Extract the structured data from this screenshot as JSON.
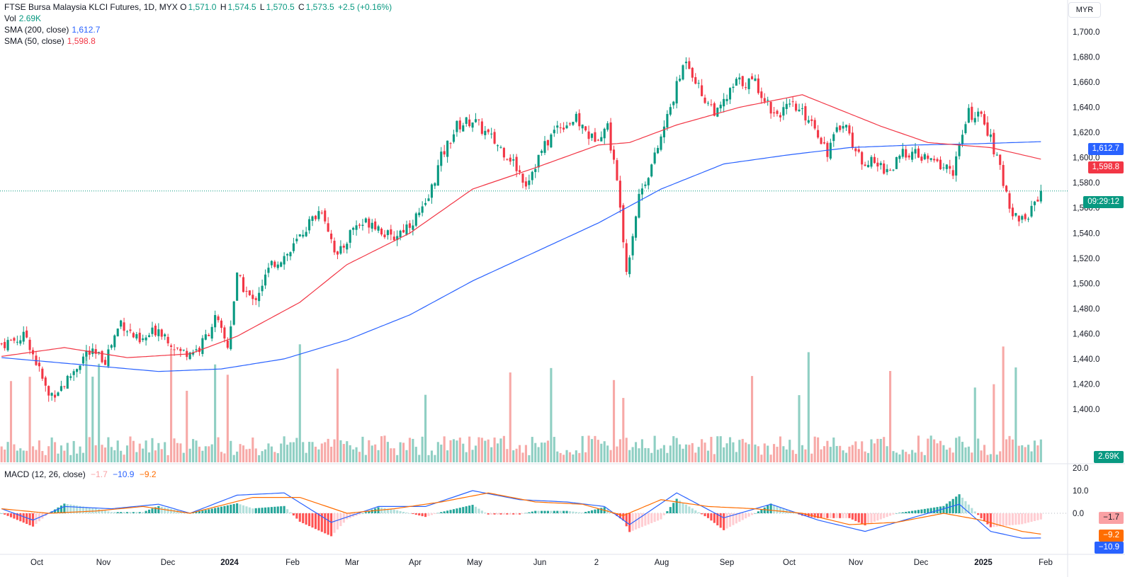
{
  "header": {
    "symbol": "FTSE Bursa Malaysia KLCI Futures, 1D, MYX",
    "o_label": "O",
    "o": "1,571.0",
    "h_label": "H",
    "h": "1,574.5",
    "l_label": "L",
    "l": "1,570.5",
    "c_label": "C",
    "c": "1,573.5",
    "change": "+2.5 (+0.16%)"
  },
  "legends": {
    "vol_label": "Vol",
    "vol_value": "2.69K",
    "sma200_label": "SMA (200, close)",
    "sma200_value": "1,612.7",
    "sma50_label": "SMA (50, close)",
    "sma50_value": "1,598.8",
    "macd_label": "MACD (12, 26, close)",
    "macd_hist": "−1.7",
    "macd_line": "−10.9",
    "macd_signal": "−9.2"
  },
  "axis": {
    "currency": "MYR"
  },
  "tags": {
    "sma200": "1,612.7",
    "sma50": "1,598.8",
    "countdown": "09:29:12",
    "volume": "2.69K",
    "macd_hist": "−1.7",
    "macd_signal": "−9.2",
    "macd_line": "−10.9"
  },
  "colors": {
    "up": "#089981",
    "down": "#f23645",
    "sma200": "#2962ff",
    "sma50": "#f23645",
    "vol_up": "#8fcfc3",
    "vol_down": "#f7a9a7",
    "macd": "#2962ff",
    "signal": "#ff6d00"
  },
  "chart_data": {
    "type": "candlestick",
    "price_axis": {
      "min": 1400,
      "max": 1700,
      "ticks": [
        1700,
        1680,
        1660,
        1640,
        1620,
        1600,
        1580,
        1560,
        1540,
        1520,
        1500,
        1480,
        1460,
        1440,
        1420,
        1400
      ]
    },
    "macd_axis": {
      "ticks": [
        20.0,
        10.0,
        0.0
      ]
    },
    "x_labels": [
      "Oct",
      "Nov",
      "Dec",
      "2024",
      "Feb",
      "Mar",
      "Apr",
      "May",
      "Jun",
      "2",
      "Aug",
      "Sep",
      "Oct",
      "Nov",
      "Dec",
      "2025",
      "Feb"
    ],
    "last_price": 1573.5,
    "price_path": [
      [
        0,
        1452
      ],
      [
        8,
        1458
      ],
      [
        15,
        1410
      ],
      [
        20,
        1420
      ],
      [
        27,
        1445
      ],
      [
        33,
        1440
      ],
      [
        38,
        1470
      ],
      [
        44,
        1452
      ],
      [
        50,
        1465
      ],
      [
        57,
        1445
      ],
      [
        63,
        1448
      ],
      [
        68,
        1472
      ],
      [
        72,
        1450
      ],
      [
        75,
        1505
      ],
      [
        80,
        1485
      ],
      [
        86,
        1515
      ],
      [
        92,
        1525
      ],
      [
        97,
        1545
      ],
      [
        102,
        1560
      ],
      [
        107,
        1520
      ],
      [
        112,
        1545
      ],
      [
        118,
        1550
      ],
      [
        124,
        1535
      ],
      [
        130,
        1548
      ],
      [
        135,
        1560
      ],
      [
        140,
        1600
      ],
      [
        145,
        1625
      ],
      [
        150,
        1630
      ],
      [
        156,
        1615
      ],
      [
        162,
        1600
      ],
      [
        167,
        1580
      ],
      [
        172,
        1605
      ],
      [
        177,
        1625
      ],
      [
        183,
        1630
      ],
      [
        188,
        1615
      ],
      [
        193,
        1625
      ],
      [
        197,
        1565
      ],
      [
        199,
        1510
      ],
      [
        203,
        1570
      ],
      [
        208,
        1600
      ],
      [
        213,
        1640
      ],
      [
        218,
        1680
      ],
      [
        223,
        1650
      ],
      [
        228,
        1635
      ],
      [
        234,
        1660
      ],
      [
        240,
        1660
      ],
      [
        246,
        1635
      ],
      [
        252,
        1640
      ],
      [
        258,
        1630
      ],
      [
        263,
        1605
      ],
      [
        268,
        1630
      ],
      [
        273,
        1600
      ],
      [
        278,
        1595
      ],
      [
        283,
        1590
      ],
      [
        288,
        1605
      ],
      [
        293,
        1600
      ],
      [
        298,
        1595
      ],
      [
        303,
        1590
      ],
      [
        308,
        1635
      ],
      [
        313,
        1630
      ],
      [
        318,
        1590
      ],
      [
        322,
        1555
      ],
      [
        326,
        1550
      ],
      [
        331,
        1575
      ]
    ],
    "sma200_path": [
      [
        0,
        1441
      ],
      [
        50,
        1430
      ],
      [
        70,
        1432
      ],
      [
        90,
        1440
      ],
      [
        110,
        1455
      ],
      [
        130,
        1475
      ],
      [
        150,
        1502
      ],
      [
        170,
        1525
      ],
      [
        190,
        1548
      ],
      [
        210,
        1575
      ],
      [
        230,
        1595
      ],
      [
        250,
        1602
      ],
      [
        270,
        1608
      ],
      [
        290,
        1610
      ],
      [
        310,
        1611
      ],
      [
        331,
        1612.7
      ]
    ],
    "sma50_path": [
      [
        0,
        1442
      ],
      [
        20,
        1449
      ],
      [
        40,
        1441
      ],
      [
        60,
        1444
      ],
      [
        75,
        1458
      ],
      [
        95,
        1485
      ],
      [
        110,
        1515
      ],
      [
        130,
        1540
      ],
      [
        150,
        1575
      ],
      [
        170,
        1592
      ],
      [
        190,
        1610
      ],
      [
        200,
        1612
      ],
      [
        215,
        1626
      ],
      [
        235,
        1640
      ],
      [
        255,
        1650
      ],
      [
        265,
        1640
      ],
      [
        280,
        1625
      ],
      [
        295,
        1612
      ],
      [
        315,
        1608
      ],
      [
        331,
        1598.8
      ]
    ],
    "macd_path": [
      [
        0,
        2
      ],
      [
        10,
        -3
      ],
      [
        20,
        3
      ],
      [
        35,
        2
      ],
      [
        50,
        4
      ],
      [
        60,
        0
      ],
      [
        75,
        8
      ],
      [
        90,
        9
      ],
      [
        105,
        -4
      ],
      [
        120,
        3
      ],
      [
        135,
        3
      ],
      [
        150,
        10
      ],
      [
        165,
        6
      ],
      [
        180,
        5
      ],
      [
        192,
        3
      ],
      [
        200,
        -5
      ],
      [
        215,
        9
      ],
      [
        230,
        -2
      ],
      [
        245,
        4
      ],
      [
        260,
        -3
      ],
      [
        275,
        -8
      ],
      [
        290,
        -2
      ],
      [
        305,
        4
      ],
      [
        315,
        -8
      ],
      [
        325,
        -11
      ],
      [
        331,
        -10.9
      ]
    ],
    "signal_path": [
      [
        0,
        2
      ],
      [
        15,
        0
      ],
      [
        30,
        1
      ],
      [
        45,
        3
      ],
      [
        60,
        0
      ],
      [
        80,
        7
      ],
      [
        95,
        7
      ],
      [
        110,
        0
      ],
      [
        125,
        2
      ],
      [
        140,
        5
      ],
      [
        155,
        9
      ],
      [
        170,
        5
      ],
      [
        185,
        4
      ],
      [
        198,
        -1
      ],
      [
        210,
        6
      ],
      [
        225,
        3
      ],
      [
        240,
        2
      ],
      [
        255,
        0
      ],
      [
        270,
        -5
      ],
      [
        285,
        -4
      ],
      [
        300,
        0
      ],
      [
        312,
        -3
      ],
      [
        325,
        -8
      ],
      [
        331,
        -9.2
      ]
    ]
  }
}
